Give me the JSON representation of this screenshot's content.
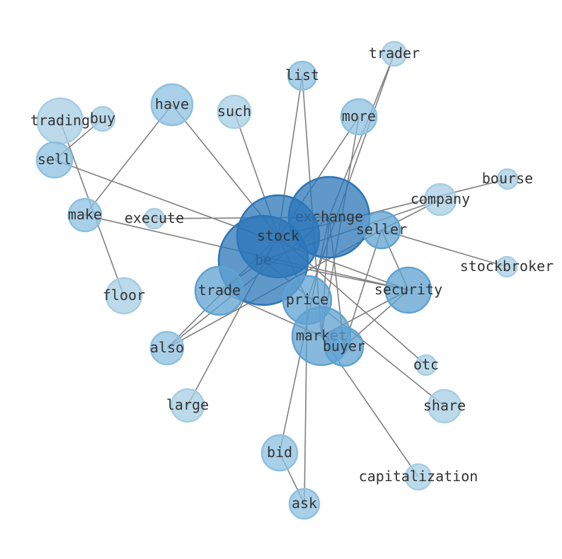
{
  "graph": {
    "colors": {
      "edge": "#808080",
      "light": "#a6cee3",
      "medium": "#8cc0e0",
      "strong": "#5fa2d1",
      "dark": "#2b76b8"
    },
    "nodes": [
      {
        "id": "trader",
        "label": "trader",
        "tone": "light"
      },
      {
        "id": "list",
        "label": "list",
        "tone": "medium"
      },
      {
        "id": "have",
        "label": "have",
        "tone": "medium"
      },
      {
        "id": "such",
        "label": "such",
        "tone": "light"
      },
      {
        "id": "more",
        "label": "more",
        "tone": "medium"
      },
      {
        "id": "trading",
        "label": "trading",
        "tone": "light"
      },
      {
        "id": "buy",
        "label": "buy",
        "tone": "light"
      },
      {
        "id": "sell",
        "label": "sell",
        "tone": "medium"
      },
      {
        "id": "bourse",
        "label": "bourse",
        "tone": "light"
      },
      {
        "id": "company",
        "label": "company",
        "tone": "light"
      },
      {
        "id": "make",
        "label": "make",
        "tone": "medium"
      },
      {
        "id": "execute",
        "label": "execute",
        "tone": "light"
      },
      {
        "id": "be",
        "label": "be",
        "tone": "dark"
      },
      {
        "id": "exchange",
        "label": "exchange",
        "tone": "dark"
      },
      {
        "id": "stock",
        "label": "stock",
        "tone": "dark"
      },
      {
        "id": "seller",
        "label": "seller",
        "tone": "strong"
      },
      {
        "id": "stockbroker",
        "label": "stockbroker",
        "tone": "light"
      },
      {
        "id": "floor",
        "label": "floor",
        "tone": "light"
      },
      {
        "id": "trade",
        "label": "trade",
        "tone": "strong"
      },
      {
        "id": "security",
        "label": "security",
        "tone": "strong"
      },
      {
        "id": "price",
        "label": "price",
        "tone": "strong"
      },
      {
        "id": "market",
        "label": "market",
        "tone": "strong"
      },
      {
        "id": "buyer",
        "label": "buyer",
        "tone": "strong"
      },
      {
        "id": "also",
        "label": "also",
        "tone": "medium"
      },
      {
        "id": "otc",
        "label": "otc",
        "tone": "light"
      },
      {
        "id": "large",
        "label": "large",
        "tone": "light"
      },
      {
        "id": "share",
        "label": "share",
        "tone": "light"
      },
      {
        "id": "bid",
        "label": "bid",
        "tone": "medium"
      },
      {
        "id": "capitalization",
        "label": "capitalization",
        "tone": "light"
      },
      {
        "id": "ask",
        "label": "ask",
        "tone": "medium"
      }
    ],
    "edges": [
      [
        "trading",
        "floor"
      ],
      [
        "buy",
        "sell"
      ],
      [
        "have",
        "make"
      ],
      [
        "have",
        "stock"
      ],
      [
        "sell",
        "security"
      ],
      [
        "make",
        "security"
      ],
      [
        "execute",
        "exchange"
      ],
      [
        "such",
        "stock"
      ],
      [
        "list",
        "stock"
      ],
      [
        "list",
        "market"
      ],
      [
        "more",
        "be"
      ],
      [
        "more",
        "market"
      ],
      [
        "trader",
        "price"
      ],
      [
        "trader",
        "exchange"
      ],
      [
        "bid",
        "exchange"
      ],
      [
        "bid",
        "ask"
      ],
      [
        "ask",
        "price"
      ],
      [
        "bourse",
        "stock"
      ],
      [
        "company",
        "be"
      ],
      [
        "company",
        "seller"
      ],
      [
        "seller",
        "also"
      ],
      [
        "seller",
        "security"
      ],
      [
        "seller",
        "buyer"
      ],
      [
        "seller",
        "stockbroker"
      ],
      [
        "security",
        "buyer"
      ],
      [
        "security",
        "market"
      ],
      [
        "security",
        "be"
      ],
      [
        "also",
        "exchange"
      ],
      [
        "also",
        "stock"
      ],
      [
        "trade",
        "market"
      ],
      [
        "large",
        "stock"
      ],
      [
        "market",
        "capitalization"
      ],
      [
        "otc",
        "stock"
      ],
      [
        "share",
        "be"
      ],
      [
        "exchange",
        "buyer"
      ],
      [
        "exchange",
        "market"
      ],
      [
        "stock",
        "price"
      ],
      [
        "be",
        "trade"
      ]
    ]
  }
}
